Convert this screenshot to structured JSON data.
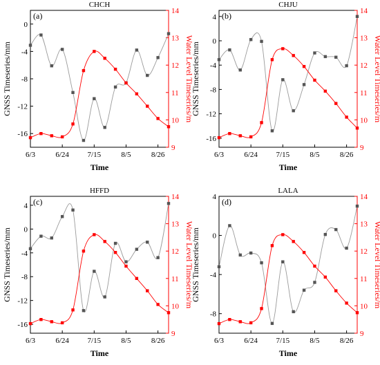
{
  "colors": {
    "gnss": "#555555",
    "water": "#ff0000",
    "axis": "#000000"
  },
  "chart_data": [
    {
      "type": "line",
      "title": "CHCH",
      "panel_label": "(a)",
      "xlabel": "Time",
      "ylabel_left": "GNSS Timeseries/mm",
      "ylabel_right": "Water Level Timeseries/m",
      "x_ticks": [
        "6/3",
        "6/24",
        "7/15",
        "8/5",
        "8/26"
      ],
      "y_left": {
        "min": -18,
        "max": 2,
        "ticks": [
          0,
          -4,
          -8,
          -12,
          -16
        ]
      },
      "y_right": {
        "min": 9,
        "max": 14,
        "ticks": [
          9,
          10,
          11,
          12,
          13,
          14
        ]
      },
      "grid": false,
      "series": [
        {
          "axis": "left",
          "x": [
            "6/3",
            "6/10",
            "6/17",
            "6/24",
            "7/1",
            "7/8",
            "7/15",
            "7/22",
            "7/29",
            "8/5",
            "8/12",
            "8/19",
            "8/26",
            "9/2"
          ],
          "values": [
            -3.1,
            -1.6,
            -6.1,
            -3.7,
            -10.0,
            -17.0,
            -10.9,
            -15.1,
            -9.2,
            -8.6,
            -3.8,
            -7.5,
            -4.9,
            -1.4
          ]
        },
        {
          "axis": "right",
          "x": [
            "6/3",
            "6/10",
            "6/17",
            "6/24",
            "7/1",
            "7/8",
            "7/15",
            "7/22",
            "7/29",
            "8/5",
            "8/12",
            "8/19",
            "8/26",
            "9/2"
          ],
          "values": [
            9.35,
            9.5,
            9.42,
            9.38,
            9.85,
            11.8,
            12.5,
            12.25,
            11.85,
            11.35,
            10.95,
            10.5,
            10.05,
            9.75
          ]
        }
      ]
    },
    {
      "type": "line",
      "title": "CHJU",
      "panel_label": "(b)",
      "xlabel": "Time",
      "ylabel_left": "GNSS Timeseries/mm",
      "ylabel_right": "Water Level Timeseries/m",
      "x_ticks": [
        "6/3",
        "6/24",
        "7/15",
        "8/5",
        "8/26"
      ],
      "y_left": {
        "min": -17.5,
        "max": 5,
        "ticks": [
          4,
          0,
          -4,
          -8,
          -12,
          -16
        ]
      },
      "y_right": {
        "min": 9,
        "max": 14,
        "ticks": [
          9,
          10,
          11,
          12,
          13,
          14
        ]
      },
      "grid": false,
      "series": [
        {
          "axis": "left",
          "x": [
            "6/3",
            "6/10",
            "6/17",
            "6/24",
            "7/1",
            "7/8",
            "7/15",
            "7/22",
            "7/29",
            "8/5",
            "8/12",
            "8/19",
            "8/26",
            "9/2"
          ],
          "values": [
            -3.1,
            -1.5,
            -4.8,
            0.2,
            -0.1,
            -14.8,
            -6.4,
            -11.5,
            -7.2,
            -2.0,
            -2.6,
            -2.7,
            -4.1,
            4.0
          ]
        },
        {
          "axis": "right",
          "x": [
            "6/3",
            "6/10",
            "6/17",
            "6/24",
            "7/1",
            "7/8",
            "7/15",
            "7/22",
            "7/29",
            "8/5",
            "8/12",
            "8/19",
            "8/26",
            "9/2"
          ],
          "values": [
            9.35,
            9.5,
            9.42,
            9.38,
            9.9,
            12.2,
            12.6,
            12.35,
            11.95,
            11.45,
            11.05,
            10.6,
            10.1,
            9.7
          ]
        }
      ]
    },
    {
      "type": "line",
      "title": "HFFD",
      "panel_label": "(c)",
      "xlabel": "Time",
      "ylabel_left": "GNSS Timeseries/mm",
      "ylabel_right": "Water Level Timeseries/m",
      "x_ticks": [
        "6/3",
        "6/24",
        "7/15",
        "8/5",
        "8/26"
      ],
      "y_left": {
        "min": -17.5,
        "max": 5.5,
        "ticks": [
          4,
          0,
          -4,
          -8,
          -12,
          -16
        ]
      },
      "y_right": {
        "min": 9,
        "max": 14,
        "ticks": [
          9,
          10,
          11,
          12,
          13,
          14
        ]
      },
      "grid": false,
      "series": [
        {
          "axis": "left",
          "x": [
            "6/3",
            "6/10",
            "6/17",
            "6/24",
            "7/1",
            "7/8",
            "7/15",
            "7/22",
            "7/29",
            "8/5",
            "8/12",
            "8/19",
            "8/26",
            "9/2"
          ],
          "values": [
            -3.3,
            -1.2,
            -1.5,
            2.1,
            3.2,
            -13.7,
            -7.1,
            -11.4,
            -2.4,
            -5.5,
            -3.4,
            -2.2,
            -4.8,
            4.3
          ]
        },
        {
          "axis": "right",
          "x": [
            "6/3",
            "6/10",
            "6/17",
            "6/24",
            "7/1",
            "7/8",
            "7/15",
            "7/22",
            "7/29",
            "8/5",
            "8/12",
            "8/19",
            "8/26",
            "9/2"
          ],
          "values": [
            9.35,
            9.5,
            9.42,
            9.38,
            9.85,
            12.0,
            12.6,
            12.35,
            11.95,
            11.45,
            11.0,
            10.55,
            10.05,
            9.75
          ]
        }
      ]
    },
    {
      "type": "line",
      "title": "LALA",
      "panel_label": "(d)",
      "xlabel": "Time",
      "ylabel_left": "GNSS Timeseries/mm",
      "ylabel_right": "Water Level Timeseries/m",
      "x_ticks": [
        "6/3",
        "6/24",
        "7/15",
        "8/5",
        "8/26"
      ],
      "y_left": {
        "min": -10,
        "max": 4,
        "ticks": [
          4,
          0,
          -4,
          -8
        ]
      },
      "y_right": {
        "min": 9,
        "max": 14,
        "ticks": [
          9,
          10,
          11,
          12,
          13,
          14
        ]
      },
      "grid": false,
      "series": [
        {
          "axis": "left",
          "x": [
            "6/3",
            "6/10",
            "6/17",
            "6/24",
            "7/1",
            "7/8",
            "7/15",
            "7/22",
            "7/29",
            "8/5",
            "8/12",
            "8/19",
            "8/26",
            "9/2"
          ],
          "values": [
            -3.2,
            1.0,
            -2.0,
            -1.8,
            -2.8,
            -9.0,
            -2.7,
            -7.8,
            -5.6,
            -4.8,
            0.1,
            0.6,
            -1.3,
            3.0
          ]
        },
        {
          "axis": "right",
          "x": [
            "6/3",
            "6/10",
            "6/17",
            "6/24",
            "7/1",
            "7/8",
            "7/15",
            "7/22",
            "7/29",
            "8/5",
            "8/12",
            "8/19",
            "8/26",
            "9/2"
          ],
          "values": [
            9.35,
            9.5,
            9.42,
            9.38,
            9.9,
            12.2,
            12.6,
            12.35,
            11.95,
            11.45,
            11.05,
            10.55,
            10.1,
            9.75
          ]
        }
      ]
    }
  ]
}
